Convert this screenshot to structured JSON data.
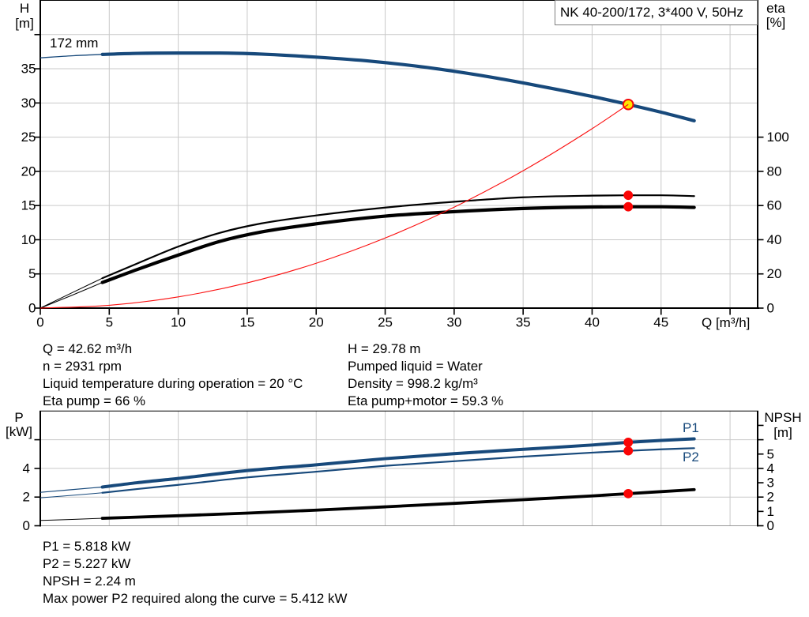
{
  "title_box": {
    "label": "NK 40-200/172, 3*400 V, 50Hz"
  },
  "colors": {
    "curve_blue": "#17497B",
    "curve_black": "#000000",
    "system_red": "#FB0F0F",
    "dot_red": "#FA0505",
    "duty_ring": "#F40A0A",
    "duty_fill": "#FFE600",
    "grid": "#C9C9C9",
    "axis": "#000000",
    "frame_gray": "#999999",
    "text": "#000000"
  },
  "info_top": {
    "col1": [
      "Q = 42.62 m³/h",
      "n = 2931 rpm",
      "Liquid temperature during operation = 20 °C",
      "Eta pump = 66 %"
    ],
    "col2": [
      "H = 29.78 m",
      "Pumped liquid = Water",
      "Density = 998.2 kg/m³",
      "Eta pump+motor = 59.3 %"
    ]
  },
  "info_bottom": {
    "lines": [
      "P1 = 5.818 kW",
      "P2 = 5.227 kW",
      "NPSH = 2.24 m",
      "Max power P2 required along the curve = 5.412 kW"
    ]
  },
  "chart_data": [
    {
      "id": "head-chart",
      "type": "line",
      "x_axis": {
        "label": "Q [m³/h]",
        "min": 0,
        "max": 52,
        "ticks": [
          0,
          5,
          10,
          15,
          20,
          25,
          30,
          35,
          40,
          45,
          50
        ],
        "tick_labels": [
          "0",
          "5",
          "10",
          "15",
          "20",
          "25",
          "30",
          "35",
          "40",
          "45"
        ]
      },
      "y_left": {
        "label": "H",
        "unit": "[m]",
        "min": 0,
        "max": 45,
        "ticks": [
          0,
          5,
          10,
          15,
          20,
          25,
          30,
          35,
          40
        ],
        "tick_labels": [
          "0",
          "5",
          "10",
          "15",
          "20",
          "25",
          "30",
          "35"
        ]
      },
      "y_right": {
        "label": "eta",
        "unit": "[%]",
        "min": 0,
        "max": 180,
        "ticks": [
          0,
          20,
          40,
          60,
          80,
          100
        ],
        "tick_labels": [
          "0",
          "20",
          "40",
          "60",
          "80",
          "100"
        ]
      },
      "series": [
        {
          "name": "eta-pump-curve",
          "axis": "right",
          "color": "black",
          "width": 2.2,
          "thin_until": 4.5,
          "thin_width": 1,
          "points": [
            [
              0,
              0
            ],
            [
              2.3,
              9
            ],
            [
              4.5,
              17.5
            ],
            [
              7,
              26
            ],
            [
              10,
              36
            ],
            [
              13,
              44
            ],
            [
              16,
              49.5
            ],
            [
              20,
              54.2
            ],
            [
              25,
              58.8
            ],
            [
              30,
              62.2
            ],
            [
              35,
              64.8
            ],
            [
              40,
              65.8
            ],
            [
              42.62,
              66.0
            ],
            [
              45,
              66.0
            ],
            [
              47.4,
              65.5
            ]
          ]
        },
        {
          "name": "eta-pump-motor-curve",
          "axis": "right",
          "color": "black",
          "width": 4.2,
          "thin_until": 4.5,
          "thin_width": 1,
          "points": [
            [
              0,
              0
            ],
            [
              2.3,
              7.5
            ],
            [
              4.5,
              15
            ],
            [
              7,
              22.5
            ],
            [
              10,
              31
            ],
            [
              13,
              39
            ],
            [
              16,
              44.5
            ],
            [
              20,
              49.3
            ],
            [
              25,
              53.8
            ],
            [
              30,
              56.4
            ],
            [
              35,
              58.3
            ],
            [
              40,
              59.15
            ],
            [
              42.62,
              59.3
            ],
            [
              45,
              59.3
            ],
            [
              47.4,
              58.9
            ]
          ]
        },
        {
          "name": "pump-curve-172mm",
          "axis": "left",
          "color": "blue",
          "width": 4.2,
          "thin_until": 4.5,
          "thin_width": 1.3,
          "label": "172 mm",
          "points": [
            [
              0,
              36.6
            ],
            [
              2.3,
              36.9
            ],
            [
              4.5,
              37.1
            ],
            [
              7,
              37.25
            ],
            [
              10,
              37.3
            ],
            [
              13,
              37.3
            ],
            [
              16,
              37.15
            ],
            [
              20,
              36.7
            ],
            [
              24,
              36.1
            ],
            [
              28,
              35.2
            ],
            [
              32,
              34.0
            ],
            [
              36,
              32.55
            ],
            [
              40,
              30.95
            ],
            [
              42.62,
              29.78
            ],
            [
              45,
              28.65
            ],
            [
              47.4,
              27.4
            ]
          ]
        },
        {
          "name": "system-curve",
          "axis": "left",
          "color": "red",
          "width": 1.1,
          "on_top": true,
          "points": [
            [
              0,
              0
            ],
            [
              5,
              0.41
            ],
            [
              10,
              1.64
            ],
            [
              15,
              3.69
            ],
            [
              20,
              6.56
            ],
            [
              25,
              10.25
            ],
            [
              30,
              14.76
            ],
            [
              35,
              20.09
            ],
            [
              40,
              26.24
            ],
            [
              42.62,
              29.78
            ]
          ]
        }
      ],
      "duty_point": {
        "q": 42.62,
        "value": 29.78,
        "axis": "left"
      },
      "dots": [
        {
          "q": 42.62,
          "value": 66,
          "axis": "right"
        },
        {
          "q": 42.62,
          "value": 59.3,
          "axis": "right"
        }
      ]
    },
    {
      "id": "power-chart",
      "type": "line",
      "x_axis": {
        "label": "",
        "min": 0,
        "max": 52,
        "ticks": [],
        "tick_labels": [],
        "grid_at": [
          5,
          10,
          15,
          20,
          25,
          30,
          35,
          40,
          45,
          50
        ]
      },
      "y_left": {
        "label": "P",
        "unit": "[kW]",
        "min": 0,
        "max": 8,
        "ticks": [
          0,
          2,
          4,
          6
        ],
        "tick_labels": [
          "0",
          "2",
          "4"
        ]
      },
      "y_right": {
        "label": "NPSH",
        "unit": "[m]",
        "min": 0,
        "max": 8,
        "ticks": [
          0,
          1,
          2,
          3,
          4,
          5,
          6,
          7
        ],
        "tick_labels": [
          "0",
          "1",
          "2",
          "3",
          "4",
          "5"
        ]
      },
      "series": [
        {
          "name": "p1-curve",
          "axis": "left",
          "color": "blue",
          "width": 4,
          "label": "P1",
          "thin_until": 4.5,
          "thin_width": 1.2,
          "points": [
            [
              0,
              2.33
            ],
            [
              2.3,
              2.52
            ],
            [
              4.5,
              2.7
            ],
            [
              7,
              3.0
            ],
            [
              10,
              3.3
            ],
            [
              15,
              3.85
            ],
            [
              20,
              4.25
            ],
            [
              25,
              4.68
            ],
            [
              30,
              5.03
            ],
            [
              35,
              5.33
            ],
            [
              40,
              5.63
            ],
            [
              42.62,
              5.818
            ],
            [
              45,
              5.95
            ],
            [
              47.4,
              6.06
            ]
          ]
        },
        {
          "name": "p2-curve",
          "axis": "left",
          "color": "blue",
          "width": 2.2,
          "label": "P2",
          "thin_until": 4.5,
          "thin_width": 1,
          "points": [
            [
              0,
              1.95
            ],
            [
              2.3,
              2.12
            ],
            [
              4.5,
              2.3
            ],
            [
              7,
              2.56
            ],
            [
              10,
              2.85
            ],
            [
              15,
              3.37
            ],
            [
              20,
              3.77
            ],
            [
              25,
              4.18
            ],
            [
              30,
              4.5
            ],
            [
              35,
              4.82
            ],
            [
              40,
              5.1
            ],
            [
              42.62,
              5.227
            ],
            [
              45,
              5.33
            ],
            [
              47.4,
              5.41
            ]
          ]
        },
        {
          "name": "npsh-curve",
          "axis": "right",
          "color": "black",
          "width": 3.8,
          "thin_until": 4.5,
          "thin_width": 1,
          "points": [
            [
              0,
              0.37
            ],
            [
              2.3,
              0.44
            ],
            [
              4.5,
              0.52
            ],
            [
              10,
              0.7
            ],
            [
              15,
              0.88
            ],
            [
              20,
              1.09
            ],
            [
              25,
              1.32
            ],
            [
              30,
              1.56
            ],
            [
              35,
              1.82
            ],
            [
              40,
              2.08
            ],
            [
              42.62,
              2.24
            ],
            [
              45,
              2.38
            ],
            [
              47.4,
              2.52
            ]
          ]
        }
      ],
      "dots": [
        {
          "q": 42.62,
          "value": 5.818,
          "axis": "left"
        },
        {
          "q": 42.62,
          "value": 5.227,
          "axis": "left"
        },
        {
          "q": 42.62,
          "value": 2.24,
          "axis": "right"
        }
      ]
    }
  ],
  "axis_titles": {
    "head_left_1": "H",
    "head_left_2": "[m]",
    "head_right_1": "eta",
    "head_right_2": "[%]",
    "head_x": "Q [m³/h]",
    "power_left_1": "P",
    "power_left_2": "[kW]",
    "power_right_1": "NPSH",
    "power_right_2": "[m]"
  },
  "curve_labels": {
    "impeller": "172 mm",
    "p1": "P1",
    "p2": "P2"
  }
}
